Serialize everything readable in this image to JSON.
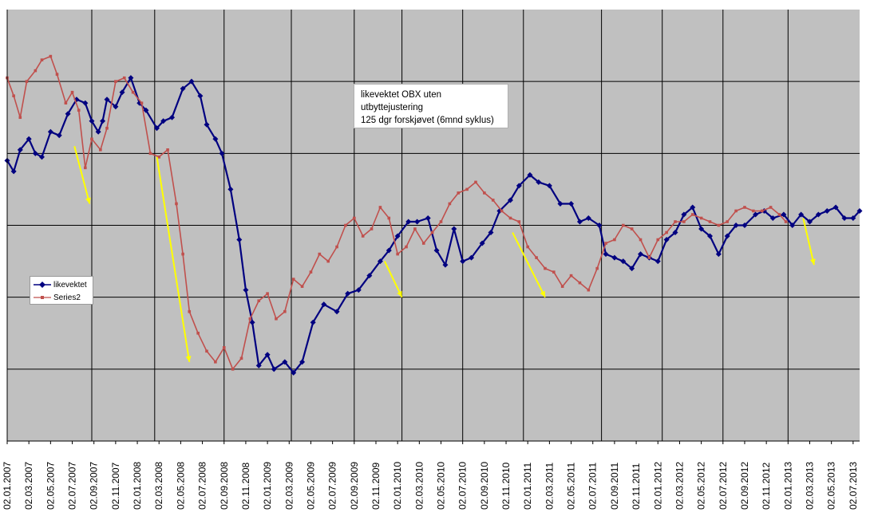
{
  "chart_data": {
    "type": "line",
    "title": "",
    "xlabel": "",
    "ylabel": "",
    "grid": true,
    "y_tick_labels_shown": false,
    "colors": {
      "plot_bg": "#c0c0c0",
      "gridline": "#000000",
      "likevektet": "#000080",
      "series2": "#c0504d",
      "arrow": "#ffff00"
    },
    "annotation": [
      "likevektet OBX uten",
      "utbyttejustering",
      "125 dgr forskjøvet (6mnd syklus)"
    ],
    "legend": {
      "placement": "middle-left",
      "entries": [
        {
          "label": "likevektet",
          "color": "#000080",
          "marker": "diamond"
        },
        {
          "label": "Series2",
          "color": "#c0504d",
          "marker": "square"
        }
      ]
    },
    "x_tick_labels": [
      "02.01.2007",
      "02.03.2007",
      "02.05.2007",
      "02.07.2007",
      "02.09.2007",
      "02.11.2007",
      "02.01.2008",
      "02.03.2008",
      "02.05.2008",
      "02.07.2008",
      "02.09.2008",
      "02.11.2008",
      "02.01.2009",
      "02.03.2009",
      "02.05.2009",
      "02.07.2009",
      "02.09.2009",
      "02.11.2009",
      "02.01.2010",
      "02.03.2010",
      "02.05.2010",
      "02.07.2010",
      "02.09.2010",
      "02.11.2010",
      "02.01.2011",
      "02.03.2011",
      "02.05.2011",
      "02.07.2011",
      "02.09.2011",
      "02.11.2011",
      "02.01.2012",
      "02.03.2012",
      "02.05.2012",
      "02.07.2012",
      "02.09.2012",
      "02.11.2012",
      "02.01.2013",
      "02.03.2013",
      "02.05.2013",
      "02.07.2013"
    ],
    "xlim": [
      0,
      39.3
    ],
    "ylim": [
      0,
      6
    ],
    "series": [
      {
        "name": "likevektet",
        "points": [
          [
            0,
            3.9
          ],
          [
            0.3,
            3.75
          ],
          [
            0.6,
            4.05
          ],
          [
            1,
            4.2
          ],
          [
            1.3,
            4.0
          ],
          [
            1.6,
            3.95
          ],
          [
            2,
            4.3
          ],
          [
            2.4,
            4.25
          ],
          [
            2.8,
            4.55
          ],
          [
            3.2,
            4.75
          ],
          [
            3.6,
            4.7
          ],
          [
            3.9,
            4.45
          ],
          [
            4.2,
            4.3
          ],
          [
            4.4,
            4.45
          ],
          [
            4.6,
            4.75
          ],
          [
            5,
            4.65
          ],
          [
            5.3,
            4.85
          ],
          [
            5.7,
            5.05
          ],
          [
            6.1,
            4.7
          ],
          [
            6.4,
            4.6
          ],
          [
            6.9,
            4.35
          ],
          [
            7.2,
            4.45
          ],
          [
            7.6,
            4.5
          ],
          [
            8.1,
            4.9
          ],
          [
            8.5,
            5.0
          ],
          [
            8.9,
            4.8
          ],
          [
            9.2,
            4.4
          ],
          [
            9.6,
            4.2
          ],
          [
            9.9,
            4.0
          ],
          [
            10.3,
            3.5
          ],
          [
            10.7,
            2.8
          ],
          [
            11,
            2.1
          ],
          [
            11.3,
            1.65
          ],
          [
            11.6,
            1.05
          ],
          [
            12,
            1.2
          ],
          [
            12.3,
            1.0
          ],
          [
            12.8,
            1.1
          ],
          [
            13.2,
            0.95
          ],
          [
            13.6,
            1.1
          ],
          [
            14.1,
            1.65
          ],
          [
            14.6,
            1.9
          ],
          [
            15.2,
            1.8
          ],
          [
            15.7,
            2.05
          ],
          [
            16.2,
            2.1
          ],
          [
            16.7,
            2.3
          ],
          [
            17.2,
            2.5
          ],
          [
            17.6,
            2.65
          ],
          [
            18,
            2.85
          ],
          [
            18.5,
            3.05
          ],
          [
            18.9,
            3.05
          ],
          [
            19.4,
            3.1
          ],
          [
            19.8,
            2.65
          ],
          [
            20.2,
            2.45
          ],
          [
            20.6,
            2.95
          ],
          [
            21,
            2.5
          ],
          [
            21.4,
            2.55
          ],
          [
            21.9,
            2.75
          ],
          [
            22.3,
            2.9
          ],
          [
            22.7,
            3.2
          ],
          [
            23.2,
            3.35
          ],
          [
            23.6,
            3.55
          ],
          [
            24.1,
            3.7
          ],
          [
            24.5,
            3.6
          ],
          [
            25,
            3.55
          ],
          [
            25.5,
            3.3
          ],
          [
            26,
            3.3
          ],
          [
            26.4,
            3.05
          ],
          [
            26.8,
            3.1
          ],
          [
            27.3,
            3.0
          ],
          [
            27.6,
            2.6
          ],
          [
            28,
            2.55
          ],
          [
            28.4,
            2.5
          ],
          [
            28.8,
            2.4
          ],
          [
            29.2,
            2.6
          ],
          [
            29.6,
            2.55
          ],
          [
            30,
            2.5
          ],
          [
            30.4,
            2.8
          ],
          [
            30.8,
            2.9
          ],
          [
            31.2,
            3.15
          ],
          [
            31.6,
            3.25
          ],
          [
            32,
            2.95
          ],
          [
            32.4,
            2.85
          ],
          [
            32.8,
            2.6
          ],
          [
            33.2,
            2.85
          ],
          [
            33.6,
            3.0
          ],
          [
            34,
            3.0
          ],
          [
            34.5,
            3.15
          ],
          [
            34.9,
            3.2
          ],
          [
            35.3,
            3.1
          ],
          [
            35.8,
            3.15
          ],
          [
            36.2,
            3.0
          ],
          [
            36.6,
            3.15
          ],
          [
            37,
            3.05
          ],
          [
            37.4,
            3.15
          ],
          [
            37.8,
            3.2
          ],
          [
            38.2,
            3.25
          ],
          [
            38.6,
            3.1
          ],
          [
            39,
            3.1
          ],
          [
            39.3,
            3.2
          ]
        ],
        "description_values": "approximate, read from gridlines (axis unlabeled)"
      },
      {
        "name": "Series2",
        "points": [
          [
            0,
            5.05
          ],
          [
            0.3,
            4.8
          ],
          [
            0.6,
            4.5
          ],
          [
            0.9,
            5.0
          ],
          [
            1.3,
            5.15
          ],
          [
            1.6,
            5.3
          ],
          [
            2,
            5.35
          ],
          [
            2.3,
            5.1
          ],
          [
            2.7,
            4.7
          ],
          [
            3,
            4.85
          ],
          [
            3.3,
            4.6
          ],
          [
            3.6,
            3.8
          ],
          [
            3.9,
            4.2
          ],
          [
            4.3,
            4.05
          ],
          [
            4.6,
            4.35
          ],
          [
            5,
            5.0
          ],
          [
            5.4,
            5.05
          ],
          [
            5.8,
            4.85
          ],
          [
            6.2,
            4.7
          ],
          [
            6.6,
            4.0
          ],
          [
            7,
            3.95
          ],
          [
            7.4,
            4.05
          ],
          [
            7.8,
            3.3
          ],
          [
            8.1,
            2.6
          ],
          [
            8.4,
            1.8
          ],
          [
            8.8,
            1.5
          ],
          [
            9.2,
            1.25
          ],
          [
            9.6,
            1.1
          ],
          [
            10,
            1.3
          ],
          [
            10.4,
            1.0
          ],
          [
            10.8,
            1.15
          ],
          [
            11.2,
            1.7
          ],
          [
            11.6,
            1.95
          ],
          [
            12,
            2.05
          ],
          [
            12.4,
            1.7
          ],
          [
            12.8,
            1.8
          ],
          [
            13.2,
            2.25
          ],
          [
            13.6,
            2.15
          ],
          [
            14,
            2.35
          ],
          [
            14.4,
            2.6
          ],
          [
            14.8,
            2.5
          ],
          [
            15.2,
            2.7
          ],
          [
            15.6,
            3.0
          ],
          [
            16,
            3.1
          ],
          [
            16.4,
            2.85
          ],
          [
            16.8,
            2.95
          ],
          [
            17.2,
            3.25
          ],
          [
            17.6,
            3.1
          ],
          [
            18,
            2.6
          ],
          [
            18.4,
            2.7
          ],
          [
            18.8,
            2.95
          ],
          [
            19.2,
            2.75
          ],
          [
            19.6,
            2.9
          ],
          [
            20,
            3.05
          ],
          [
            20.4,
            3.3
          ],
          [
            20.8,
            3.45
          ],
          [
            21.2,
            3.5
          ],
          [
            21.6,
            3.6
          ],
          [
            22,
            3.45
          ],
          [
            22.4,
            3.35
          ],
          [
            22.8,
            3.2
          ],
          [
            23.2,
            3.1
          ],
          [
            23.6,
            3.05
          ],
          [
            24,
            2.7
          ],
          [
            24.4,
            2.55
          ],
          [
            24.8,
            2.4
          ],
          [
            25.2,
            2.35
          ],
          [
            25.6,
            2.15
          ],
          [
            26,
            2.3
          ],
          [
            26.4,
            2.2
          ],
          [
            26.8,
            2.1
          ],
          [
            27.2,
            2.4
          ],
          [
            27.6,
            2.75
          ],
          [
            28,
            2.8
          ],
          [
            28.4,
            3.0
          ],
          [
            28.8,
            2.95
          ],
          [
            29.2,
            2.8
          ],
          [
            29.6,
            2.55
          ],
          [
            30,
            2.8
          ],
          [
            30.4,
            2.9
          ],
          [
            30.8,
            3.05
          ],
          [
            31.2,
            3.05
          ],
          [
            31.6,
            3.15
          ],
          [
            32,
            3.1
          ],
          [
            32.4,
            3.05
          ],
          [
            32.8,
            3.0
          ],
          [
            33.2,
            3.05
          ],
          [
            33.6,
            3.2
          ],
          [
            34,
            3.25
          ],
          [
            34.4,
            3.2
          ],
          [
            34.8,
            3.2
          ],
          [
            35.2,
            3.25
          ],
          [
            35.6,
            3.15
          ],
          [
            35.9,
            3.05
          ]
        ],
        "description_values": "approximate, read from gridlines (axis unlabeled)"
      }
    ],
    "arrows": [
      {
        "from": [
          3.1,
          4.1
        ],
        "to": [
          3.8,
          3.3
        ]
      },
      {
        "from": [
          6.9,
          3.95
        ],
        "to": [
          8.4,
          1.1
        ]
      },
      {
        "from": [
          17.4,
          2.5
        ],
        "to": [
          18.2,
          2.0
        ]
      },
      {
        "from": [
          23.3,
          2.9
        ],
        "to": [
          24.8,
          2.0
        ]
      },
      {
        "from": [
          36.7,
          3.1
        ],
        "to": [
          37.2,
          2.45
        ]
      }
    ]
  }
}
